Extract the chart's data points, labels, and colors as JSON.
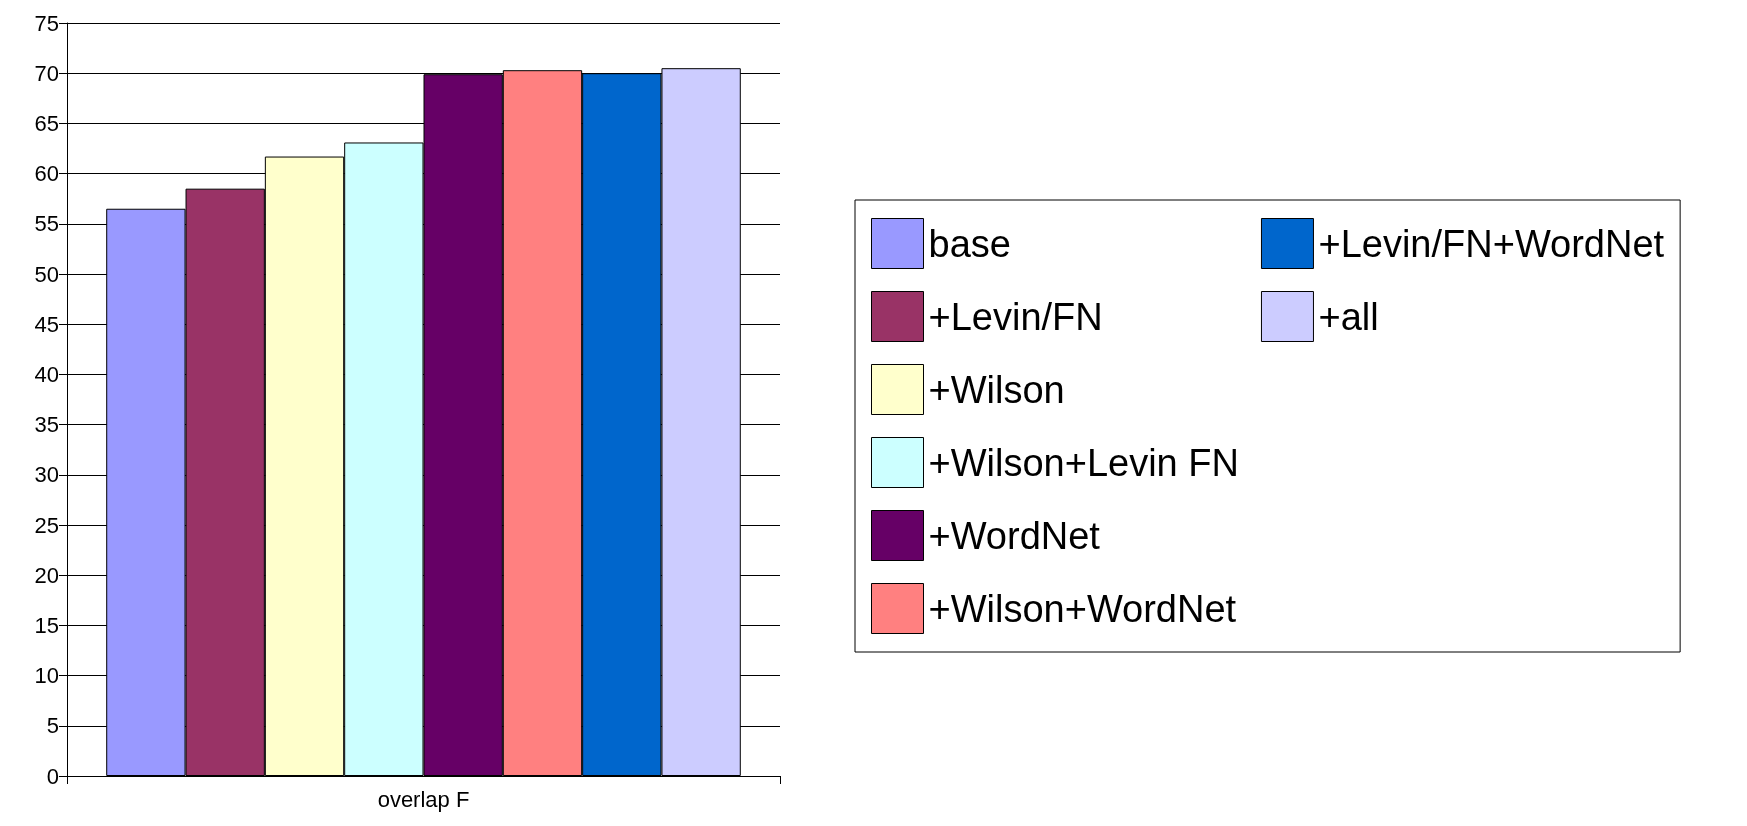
{
  "chart_data": {
    "type": "bar",
    "categories": [
      "overlap F"
    ],
    "series": [
      {
        "name": "base",
        "color": "#9999ff",
        "values": [
          56.5
        ]
      },
      {
        "name": "+Levin/FN",
        "color": "#993366",
        "values": [
          58.5
        ]
      },
      {
        "name": "+Wilson",
        "color": "#ffffcc",
        "values": [
          61.7
        ]
      },
      {
        "name": "+Wilson+Levin FN",
        "color": "#ccffff",
        "values": [
          63.1
        ]
      },
      {
        "name": "+WordNet",
        "color": "#660066",
        "values": [
          69.9
        ]
      },
      {
        "name": "+Wilson+WordNet",
        "color": "#ff8080",
        "values": [
          70.3
        ]
      },
      {
        "name": "+Levin/FN+WordNet",
        "color": "#0066cc",
        "values": [
          70.0
        ]
      },
      {
        "name": "+all",
        "color": "#ccccff",
        "values": [
          70.5
        ]
      }
    ],
    "ylim": [
      0,
      75
    ],
    "yticks": [
      0,
      5,
      10,
      15,
      20,
      25,
      30,
      35,
      40,
      45,
      50,
      55,
      60,
      65,
      70,
      75
    ],
    "grid": "y",
    "legend": "right"
  }
}
